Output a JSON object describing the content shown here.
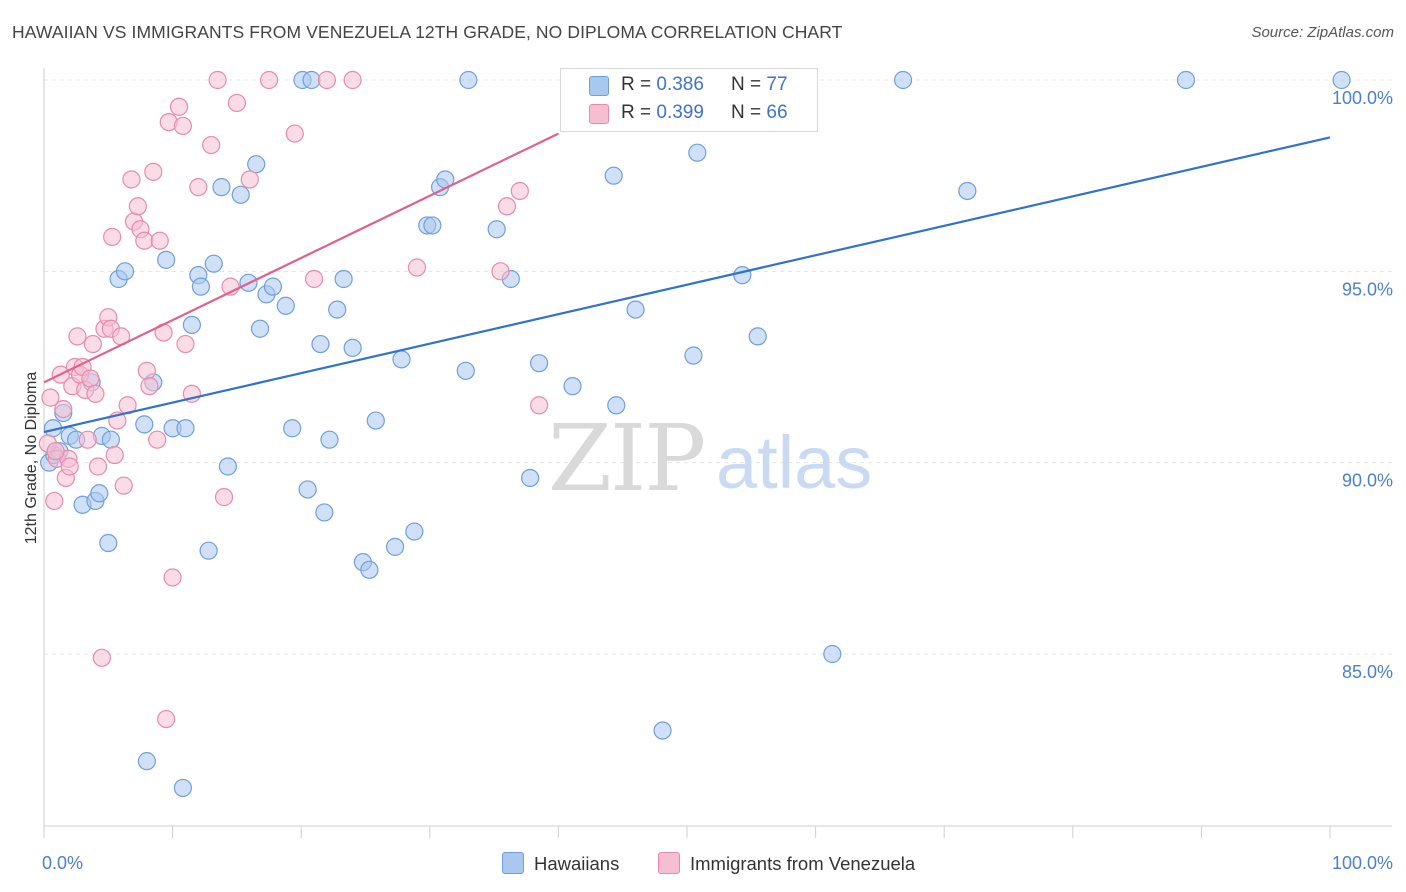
{
  "header": {
    "title": "HAWAIIAN VS IMMIGRANTS FROM VENEZUELA 12TH GRADE, NO DIPLOMA CORRELATION CHART",
    "source": "Source: ZipAtlas.com"
  },
  "watermark": {
    "zip": "ZIP",
    "atlas": "atlas"
  },
  "legend": {
    "rows": [
      {
        "r_label": "R = ",
        "r_value": "0.386",
        "n_label": "N = ",
        "n_value": "77",
        "color": "#a9c8f0",
        "border": "#6f9fdc"
      },
      {
        "r_label": "R = ",
        "r_value": "0.399",
        "n_label": "N = ",
        "n_value": "66",
        "color": "#f6bfd1",
        "border": "#e98aaa"
      }
    ]
  },
  "bottom_legend": {
    "items": [
      {
        "label": "Hawaiians",
        "color": "#a9c8f0",
        "border": "#6f9fdc"
      },
      {
        "label": "Immigrants from Venezuela",
        "color": "#f6bfd1",
        "border": "#e98aaa"
      }
    ]
  },
  "chart_data": {
    "type": "scatter",
    "title": "HAWAIIAN VS IMMIGRANTS FROM VENEZUELA 12TH GRADE, NO DIPLOMA CORRELATION CHART",
    "xlabel": "",
    "ylabel": "12th Grade, No Diploma",
    "xlim": [
      0,
      100
    ],
    "ylim": [
      80.5,
      101.0
    ],
    "x_tick_labels": [
      "0.0%",
      "100.0%"
    ],
    "y_ticks": [
      85,
      90,
      95,
      100
    ],
    "y_tick_labels": [
      "85.0%",
      "90.0%",
      "95.0%",
      "100.0%"
    ],
    "grid": true,
    "legend_position": "top-center",
    "series": [
      {
        "name": "Hawaiians",
        "color": "#a9c8f0",
        "stroke": "#6f9fdc",
        "line_color": "#2f72d0",
        "r": 0.386,
        "n": 77,
        "trend": [
          [
            0,
            90.8
          ],
          [
            100,
            98.5
          ]
        ],
        "points": [
          [
            0.4,
            90.0
          ],
          [
            0.8,
            90.2
          ],
          [
            1.2,
            90.3
          ],
          [
            1.5,
            91.3
          ],
          [
            2.0,
            90.7
          ],
          [
            2.5,
            90.6
          ],
          [
            3.0,
            88.9
          ],
          [
            3.7,
            92.1
          ],
          [
            4.0,
            89.0
          ],
          [
            4.3,
            89.2
          ],
          [
            4.5,
            90.7
          ],
          [
            5.0,
            87.9
          ],
          [
            5.2,
            90.6
          ],
          [
            5.8,
            94.8
          ],
          [
            6.3,
            95.0
          ],
          [
            7.8,
            91.0
          ],
          [
            8.5,
            92.1
          ],
          [
            9.5,
            95.3
          ],
          [
            10.0,
            90.9
          ],
          [
            10.8,
            81.5
          ],
          [
            11.0,
            90.9
          ],
          [
            11.5,
            93.6
          ],
          [
            12.0,
            94.9
          ],
          [
            12.2,
            94.6
          ],
          [
            12.8,
            87.7
          ],
          [
            13.2,
            95.2
          ],
          [
            13.8,
            97.2
          ],
          [
            14.3,
            89.9
          ],
          [
            15.3,
            97.0
          ],
          [
            15.9,
            94.7
          ],
          [
            16.5,
            97.8
          ],
          [
            16.8,
            93.5
          ],
          [
            17.3,
            94.4
          ],
          [
            17.8,
            94.6
          ],
          [
            18.8,
            94.1
          ],
          [
            19.3,
            90.9
          ],
          [
            20.1,
            100.0
          ],
          [
            20.5,
            89.3
          ],
          [
            21.5,
            93.1
          ],
          [
            21.8,
            88.7
          ],
          [
            22.2,
            90.6
          ],
          [
            22.8,
            94.0
          ],
          [
            23.3,
            94.8
          ],
          [
            24.0,
            93.0
          ],
          [
            24.8,
            87.4
          ],
          [
            25.3,
            87.2
          ],
          [
            25.8,
            91.1
          ],
          [
            27.3,
            87.8
          ],
          [
            27.8,
            92.7
          ],
          [
            28.8,
            88.2
          ],
          [
            29.8,
            96.2
          ],
          [
            30.2,
            96.2
          ],
          [
            30.8,
            97.2
          ],
          [
            31.2,
            97.4
          ],
          [
            32.8,
            92.4
          ],
          [
            33.0,
            100.0
          ],
          [
            35.2,
            96.1
          ],
          [
            36.3,
            94.8
          ],
          [
            37.8,
            89.6
          ],
          [
            38.5,
            92.6
          ],
          [
            41.1,
            92.0
          ],
          [
            44.3,
            97.5
          ],
          [
            44.5,
            91.5
          ],
          [
            46.0,
            94.0
          ],
          [
            48.1,
            83.0
          ],
          [
            50.5,
            92.8
          ],
          [
            50.8,
            98.1
          ],
          [
            54.3,
            94.9
          ],
          [
            55.5,
            93.3
          ],
          [
            61.3,
            85.0
          ],
          [
            66.8,
            100.0
          ],
          [
            71.8,
            97.1
          ],
          [
            88.8,
            100.0
          ],
          [
            100.9,
            100.0
          ],
          [
            8.0,
            82.2
          ],
          [
            0.7,
            90.9
          ],
          [
            20.8,
            100.0
          ]
        ]
      },
      {
        "name": "Immigrants from Venezuela",
        "color": "#f6bfd1",
        "stroke": "#e98aaa",
        "line_color": "#e0608e",
        "r": 0.399,
        "n": 66,
        "trend": [
          [
            0,
            92.1
          ],
          [
            40,
            98.6
          ]
        ],
        "points": [
          [
            0.3,
            90.5
          ],
          [
            0.5,
            91.7
          ],
          [
            0.8,
            89.0
          ],
          [
            1.0,
            90.1
          ],
          [
            1.3,
            92.3
          ],
          [
            1.5,
            91.4
          ],
          [
            1.7,
            89.6
          ],
          [
            1.9,
            90.1
          ],
          [
            2.2,
            92.0
          ],
          [
            2.4,
            92.5
          ],
          [
            2.6,
            93.3
          ],
          [
            2.8,
            92.3
          ],
          [
            3.0,
            92.5
          ],
          [
            3.2,
            91.9
          ],
          [
            3.4,
            90.6
          ],
          [
            3.6,
            92.2
          ],
          [
            3.8,
            93.1
          ],
          [
            4.0,
            91.8
          ],
          [
            4.2,
            89.9
          ],
          [
            4.5,
            84.9
          ],
          [
            4.7,
            93.5
          ],
          [
            5.0,
            93.8
          ],
          [
            5.2,
            93.5
          ],
          [
            5.5,
            90.2
          ],
          [
            5.7,
            91.1
          ],
          [
            6.0,
            93.3
          ],
          [
            6.2,
            89.4
          ],
          [
            6.5,
            91.5
          ],
          [
            6.8,
            97.4
          ],
          [
            7.0,
            96.3
          ],
          [
            7.3,
            96.7
          ],
          [
            7.5,
            96.1
          ],
          [
            7.8,
            95.8
          ],
          [
            8.0,
            92.4
          ],
          [
            8.2,
            92.0
          ],
          [
            8.5,
            97.6
          ],
          [
            8.8,
            90.6
          ],
          [
            9.0,
            95.8
          ],
          [
            9.3,
            93.4
          ],
          [
            9.5,
            83.3
          ],
          [
            9.7,
            98.9
          ],
          [
            10.0,
            87.0
          ],
          [
            10.5,
            99.3
          ],
          [
            10.8,
            98.8
          ],
          [
            11.0,
            93.1
          ],
          [
            11.5,
            91.8
          ],
          [
            12.0,
            97.2
          ],
          [
            13.0,
            98.3
          ],
          [
            14.0,
            89.1
          ],
          [
            14.5,
            94.6
          ],
          [
            15.0,
            99.4
          ],
          [
            16.0,
            97.4
          ],
          [
            17.5,
            100.0
          ],
          [
            19.5,
            98.6
          ],
          [
            21.0,
            94.8
          ],
          [
            22.0,
            100.0
          ],
          [
            24.0,
            100.0
          ],
          [
            29.0,
            95.1
          ],
          [
            35.5,
            95.0
          ],
          [
            36.0,
            96.7
          ],
          [
            37.0,
            97.1
          ],
          [
            38.5,
            91.5
          ],
          [
            13.5,
            100.0
          ],
          [
            0.9,
            90.3
          ],
          [
            2.0,
            89.9
          ],
          [
            5.3,
            95.9
          ]
        ]
      }
    ]
  }
}
